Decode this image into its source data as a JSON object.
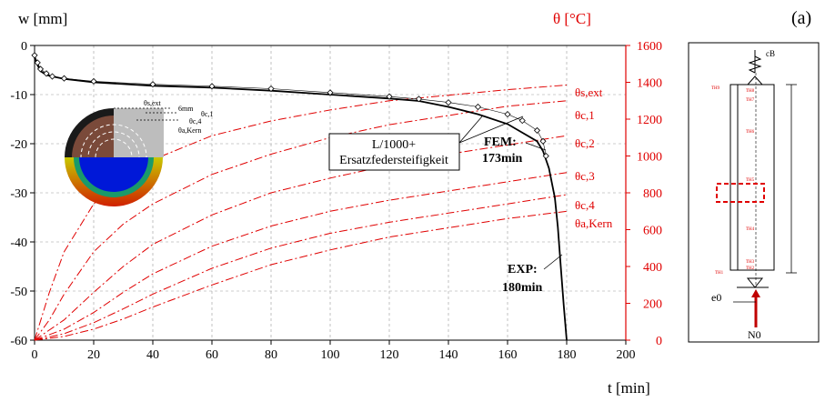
{
  "panel_label": "(a)",
  "chart_data": {
    "type": "line",
    "ylabel_left": "w [mm]",
    "ylabel_right": "θ [°C]",
    "xlabel": "t [min]",
    "xlim": [
      0,
      200
    ],
    "ylim_left": [
      -60,
      0
    ],
    "ylim_right": [
      0,
      1600
    ],
    "x_ticks": [
      0,
      20,
      40,
      60,
      80,
      100,
      120,
      140,
      160,
      180,
      200
    ],
    "y_left_ticks": [
      0,
      -10,
      -20,
      -30,
      -40,
      -50,
      -60
    ],
    "y_right_ticks": [
      1600,
      1400,
      1200,
      1000,
      800,
      600,
      400,
      200,
      0
    ],
    "grid": "dashed",
    "series_deflection": [
      {
        "name": "EXP",
        "style": "solid-black",
        "x": [
          0,
          1,
          2,
          4,
          6,
          10,
          20,
          40,
          60,
          80,
          100,
          120,
          130,
          140,
          150,
          160,
          170,
          172,
          174,
          176,
          177,
          178,
          179,
          180
        ],
        "y": [
          -2.5,
          -4,
          -5.2,
          -6,
          -6.3,
          -6.8,
          -7.5,
          -8.2,
          -8.6,
          -9.2,
          -10,
          -10.8,
          -11.3,
          -12.5,
          -14,
          -16,
          -19.5,
          -21.5,
          -25,
          -31,
          -37,
          -45,
          -53,
          -60
        ]
      },
      {
        "name": "FEM",
        "style": "diamond-markers",
        "x": [
          0,
          1,
          2,
          4,
          6,
          10,
          20,
          40,
          60,
          80,
          100,
          120,
          130,
          140,
          150,
          160,
          165,
          170,
          172,
          173
        ],
        "y": [
          -2,
          -3.5,
          -4.8,
          -5.7,
          -6.3,
          -6.7,
          -7.3,
          -7.9,
          -8.3,
          -8.8,
          -9.6,
          -10.4,
          -10.9,
          -11.6,
          -12.5,
          -14,
          -15.3,
          -17.3,
          -19.5,
          -22.5
        ]
      }
    ],
    "series_temperature": [
      {
        "name": "θs,ext",
        "x": [
          0,
          5,
          10,
          20,
          30,
          40,
          60,
          80,
          100,
          120,
          140,
          160,
          180
        ],
        "y": [
          0,
          260,
          480,
          740,
          880,
          980,
          1110,
          1190,
          1250,
          1300,
          1330,
          1360,
          1385
        ]
      },
      {
        "name": "θc,1",
        "x": [
          0,
          5,
          10,
          20,
          30,
          40,
          60,
          80,
          100,
          120,
          140,
          160,
          180
        ],
        "y": [
          0,
          110,
          250,
          480,
          630,
          740,
          900,
          1010,
          1100,
          1170,
          1220,
          1270,
          1300
        ]
      },
      {
        "name": "θc,2",
        "x": [
          0,
          10,
          20,
          30,
          40,
          60,
          80,
          100,
          120,
          140,
          160,
          180
        ],
        "y": [
          0,
          110,
          260,
          400,
          520,
          680,
          800,
          880,
          950,
          1010,
          1060,
          1110
        ]
      },
      {
        "name": "θc,3",
        "x": [
          0,
          10,
          20,
          30,
          40,
          60,
          80,
          100,
          120,
          140,
          160,
          180
        ],
        "y": [
          0,
          60,
          150,
          260,
          360,
          510,
          620,
          700,
          760,
          810,
          860,
          910
        ]
      },
      {
        "name": "θc,4",
        "x": [
          0,
          10,
          20,
          30,
          40,
          60,
          80,
          100,
          120,
          140,
          160,
          180
        ],
        "y": [
          0,
          35,
          95,
          170,
          250,
          390,
          500,
          580,
          640,
          690,
          740,
          790
        ]
      },
      {
        "name": "θa,Kern",
        "x": [
          0,
          10,
          20,
          30,
          40,
          60,
          80,
          100,
          120,
          140,
          160,
          180
        ],
        "y": [
          0,
          20,
          60,
          115,
          180,
          300,
          410,
          490,
          560,
          610,
          660,
          700
        ]
      }
    ],
    "temp_labels": [
      "θs,ext",
      "θc,1",
      "θc,2",
      "θc,3",
      "θc,4",
      "θa,Kern"
    ],
    "annotations": {
      "box_line1": "L/1000+",
      "box_line2": "Ersatzfedersteifigkeit",
      "fem_line1": "FEM:",
      "fem_line2": "173min",
      "exp_line1": "EXP:",
      "exp_line2": "180min"
    }
  },
  "inset": {
    "labels": [
      "θs,ext",
      "6mm",
      "θc,1",
      "θc,4",
      "θa,Kern"
    ]
  },
  "schematic": {
    "support_label": "cB",
    "eccentricity_label": "e0",
    "load_label": "N0",
    "sensor_labels": [
      "TH9",
      "TH8",
      "TH7",
      "TH6",
      "TH5",
      "TH4",
      "TH3",
      "TH2",
      "TH1"
    ]
  },
  "colors": {
    "exp_line": "#000000",
    "fem_marker": "#000000",
    "temperature": "#e00000",
    "right_axis": "#e00000",
    "grid": "#9a9a9a"
  }
}
